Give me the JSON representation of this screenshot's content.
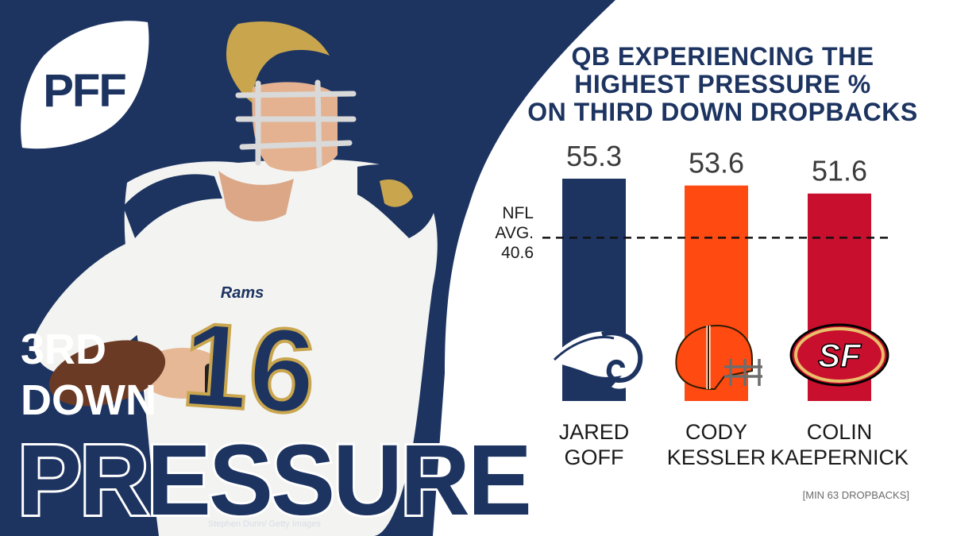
{
  "brand": {
    "logo_text": "PFF",
    "navy": "#1d3461",
    "orange": "#ff4a12",
    "red": "#c8102e",
    "white": "#ffffff"
  },
  "headline": {
    "line1": "3RD",
    "line2": "DOWN",
    "line3": "PRESSURE"
  },
  "photo": {
    "credit": "Stephen Dunn/ Getty Images",
    "jersey_number": "16",
    "jersey_wordmark": "Rams"
  },
  "chart_data": {
    "type": "bar",
    "title_lines": [
      "QB EXPERIENCING THE",
      "HIGHEST PRESSURE %",
      "ON THIRD DOWN DROPBACKS"
    ],
    "categories": [
      "JARED GOFF",
      "CODY KESSLER",
      "COLIN KAEPERNICK"
    ],
    "category_lines": [
      [
        "JARED",
        "GOFF"
      ],
      [
        "CODY",
        "KESSLER"
      ],
      [
        "COLIN",
        "KAEPERNICK"
      ]
    ],
    "values": [
      55.3,
      53.6,
      51.6
    ],
    "value_labels": [
      "55.3",
      "53.6",
      "51.6"
    ],
    "bar_colors": [
      "#1d3461",
      "#ff4a12",
      "#c8102e"
    ],
    "team_logos": [
      "rams-logo-icon",
      "browns-helmet-icon",
      "49ers-logo-icon"
    ],
    "reference_line": {
      "label_lines": [
        "NFL",
        "AVG.",
        "40.6"
      ],
      "value": 40.6,
      "style": "dashed"
    },
    "ylim": [
      0,
      55.3
    ],
    "footnote": "[MIN 63 DROPBACKS]"
  }
}
